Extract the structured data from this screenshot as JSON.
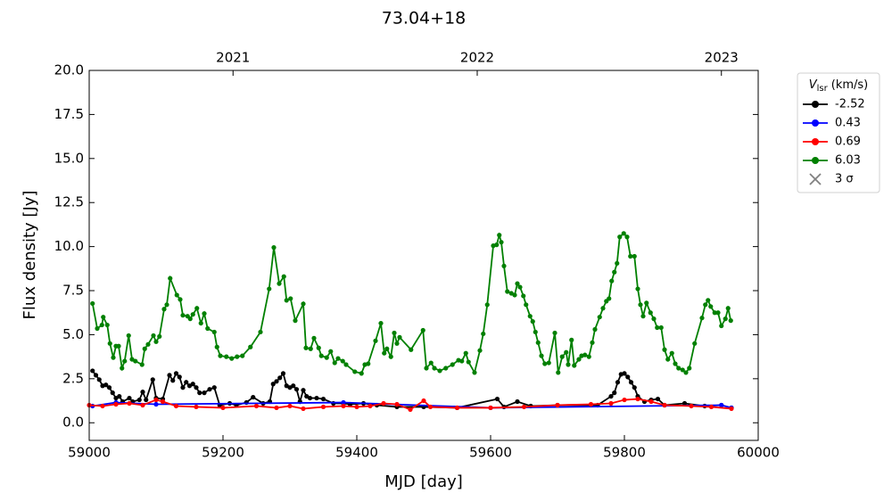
{
  "chart_data": {
    "type": "line",
    "title": "73.04+18",
    "xlabel": "MJD [day]",
    "ylabel": "Flux density [Jy]",
    "xlim": [
      59000,
      60000
    ],
    "xticks": [
      59000,
      59200,
      59400,
      59600,
      59800,
      60000
    ],
    "x2ticks": [
      {
        "value": 59215,
        "label": "2021"
      },
      {
        "value": 59580,
        "label": "2022"
      },
      {
        "value": 59945,
        "label": "2023"
      }
    ],
    "ylim": [
      -1,
      20
    ],
    "yticks": [
      {
        "value": 0,
        "label": "0.0"
      },
      2.5,
      {
        "value": 5,
        "label": "5.0"
      },
      7.5,
      {
        "value": 10,
        "label": "10.0"
      },
      12.5,
      {
        "value": 15,
        "label": "15.0"
      },
      17.5,
      {
        "value": 20,
        "label": "20.0"
      }
    ],
    "legend": {
      "title_symbol": "V",
      "title_subscript": "lsr",
      "title_unit": "(km/s)",
      "position": "outside-upper-right",
      "sigma_label": "3 σ",
      "sigma_color": "#808080"
    },
    "series": [
      {
        "name": "-2.52",
        "color": "#000000",
        "x": [
          59005,
          59010,
          59015,
          59020,
          59025,
          59030,
          59035,
          59040,
          59045,
          59050,
          59060,
          59065,
          59075,
          59080,
          59085,
          59095,
          59100,
          59110,
          59120,
          59125,
          59130,
          59135,
          59140,
          59145,
          59150,
          59155,
          59160,
          59165,
          59172,
          59180,
          59187,
          59195,
          59210,
          59220,
          59235,
          59245,
          59260,
          59270,
          59275,
          59280,
          59285,
          59290,
          59295,
          59300,
          59305,
          59310,
          59315,
          59320,
          59325,
          59330,
          59340,
          59350,
          59365,
          59380,
          59390,
          59410,
          59430,
          59460,
          59500,
          59550,
          59610,
          59620,
          59640,
          59660,
          59700,
          59760,
          59780,
          59785,
          59790,
          59795,
          59800,
          59805,
          59810,
          59815,
          59820,
          59830,
          59840,
          59850,
          59860,
          59890,
          59920,
          59945,
          59960
        ],
        "values": [
          2.95,
          2.7,
          2.45,
          2.1,
          2.15,
          2.0,
          1.7,
          1.4,
          1.5,
          1.2,
          1.4,
          1.2,
          1.3,
          1.75,
          1.3,
          2.45,
          1.4,
          1.35,
          2.7,
          2.4,
          2.8,
          2.6,
          2.0,
          2.3,
          2.1,
          2.2,
          2.0,
          1.7,
          1.7,
          1.9,
          2.0,
          1.0,
          1.1,
          1.0,
          1.15,
          1.45,
          1.1,
          1.2,
          2.2,
          2.35,
          2.55,
          2.8,
          2.1,
          2.0,
          2.1,
          1.9,
          1.2,
          1.85,
          1.5,
          1.4,
          1.4,
          1.35,
          1.1,
          1.1,
          1.05,
          1.1,
          1.0,
          0.9,
          0.9,
          0.85,
          1.35,
          0.9,
          1.2,
          0.95,
          1.0,
          1.0,
          1.5,
          1.7,
          2.3,
          2.75,
          2.8,
          2.6,
          2.3,
          2.0,
          1.5,
          1.2,
          1.3,
          1.35,
          1.0,
          1.1,
          0.95,
          1.0,
          0.85
        ]
      },
      {
        "name": "0.43",
        "color": "#0000ff",
        "x": [
          59005,
          59040,
          59100,
          59380,
          59600,
          59945,
          59960
        ],
        "values": [
          0.95,
          1.15,
          1.05,
          1.15,
          0.85,
          1.0,
          0.85
        ]
      },
      {
        "name": "0.69",
        "color": "#ff0000",
        "x": [
          59000,
          59020,
          59040,
          59060,
          59080,
          59100,
          59110,
          59130,
          59160,
          59200,
          59250,
          59280,
          59300,
          59320,
          59350,
          59380,
          59400,
          59420,
          59440,
          59460,
          59480,
          59500,
          59510,
          59550,
          59600,
          59650,
          59700,
          59750,
          59780,
          59800,
          59820,
          59840,
          59860,
          59900,
          59930,
          59960
        ],
        "values": [
          1.0,
          0.95,
          1.05,
          1.1,
          1.0,
          1.3,
          1.2,
          0.95,
          0.9,
          0.85,
          0.95,
          0.85,
          0.95,
          0.8,
          0.9,
          0.95,
          0.9,
          0.95,
          1.1,
          1.05,
          0.75,
          1.25,
          0.9,
          0.85,
          0.85,
          0.9,
          1.0,
          1.05,
          1.1,
          1.3,
          1.35,
          1.2,
          1.0,
          0.95,
          0.9,
          0.8
        ]
      },
      {
        "name": "6.03",
        "color": "#008000",
        "x": [
          59005,
          59012,
          59019,
          59021,
          59027,
          59031,
          59036,
          59040,
          59044,
          59049,
          59053,
          59059,
          59064,
          59069,
          59079,
          59083,
          59088,
          59096,
          59100,
          59105,
          59112,
          59116,
          59121,
          59131,
          59136,
          59140,
          59147,
          59151,
          59155,
          59161,
          59167,
          59172,
          59177,
          59187,
          59191,
          59196,
          59205,
          59213,
          59221,
          59229,
          59241,
          59256,
          59269,
          59276,
          59284,
          59291,
          59295,
          59301,
          59308,
          59320,
          59324,
          59331,
          59336,
          59343,
          59347,
          59355,
          59361,
          59367,
          59372,
          59379,
          59384,
          59397,
          59407,
          59412,
          59417,
          59428,
          59436,
          59441,
          59445,
          59451,
          59456,
          59460,
          59464,
          59481,
          59499,
          59504,
          59511,
          59516,
          59524,
          59533,
          59543,
          59552,
          59557,
          59563,
          59567,
          59576,
          59584,
          59589,
          59595,
          59604,
          59609,
          59613,
          59616,
          59620,
          59625,
          59631,
          59636,
          59640,
          59644,
          59649,
          59653,
          59659,
          59663,
          59667,
          59671,
          59676,
          59681,
          59687,
          59696,
          59701,
          59707,
          59713,
          59716,
          59721,
          59725,
          59732,
          59736,
          59741,
          59747,
          59752,
          59756,
          59763,
          59768,
          59773,
          59777,
          59781,
          59785,
          59789,
          59793,
          59799,
          59804,
          59809,
          59815,
          59820,
          59824,
          59828,
          59833,
          59839,
          59844,
          59849,
          59855,
          59860,
          59865,
          59871,
          59876,
          59881,
          59887,
          59892,
          59897,
          59905,
          59916,
          59921,
          59925,
          59929,
          59935,
          59940,
          59945,
          59951,
          59955,
          59959
        ],
        "values": [
          6.77,
          5.35,
          5.55,
          6.0,
          5.55,
          4.5,
          3.7,
          4.35,
          4.35,
          3.1,
          3.5,
          4.95,
          3.6,
          3.5,
          3.3,
          4.2,
          4.45,
          4.95,
          4.6,
          4.9,
          6.45,
          6.7,
          8.2,
          7.25,
          7.0,
          6.1,
          6.05,
          5.9,
          6.15,
          6.5,
          5.65,
          6.2,
          5.35,
          5.15,
          4.3,
          3.8,
          3.75,
          3.65,
          3.75,
          3.8,
          4.3,
          5.15,
          7.6,
          9.95,
          7.9,
          8.3,
          6.95,
          7.05,
          5.8,
          6.75,
          4.25,
          4.2,
          4.8,
          4.25,
          3.8,
          3.7,
          4.05,
          3.4,
          3.65,
          3.5,
          3.3,
          2.9,
          2.8,
          3.3,
          3.35,
          4.65,
          5.65,
          3.95,
          4.2,
          3.75,
          5.1,
          4.5,
          4.85,
          4.15,
          5.25,
          3.1,
          3.4,
          3.1,
          2.95,
          3.1,
          3.3,
          3.55,
          3.5,
          3.95,
          3.45,
          2.85,
          4.1,
          5.05,
          6.7,
          10.05,
          10.1,
          10.65,
          10.25,
          8.9,
          7.45,
          7.35,
          7.25,
          7.9,
          7.7,
          7.2,
          6.7,
          6.05,
          5.75,
          5.15,
          4.55,
          3.8,
          3.35,
          3.4,
          5.1,
          2.85,
          3.75,
          4.0,
          3.3,
          4.7,
          3.25,
          3.6,
          3.8,
          3.85,
          3.75,
          4.55,
          5.3,
          6.0,
          6.5,
          6.9,
          7.05,
          8.05,
          8.55,
          9.05,
          10.55,
          10.75,
          10.55,
          9.45,
          9.45,
          7.6,
          6.7,
          6.05,
          6.8,
          6.25,
          5.9,
          5.4,
          5.4,
          4.15,
          3.6,
          3.95,
          3.35,
          3.1,
          3.0,
          2.85,
          3.1,
          4.5,
          5.95,
          6.7,
          6.95,
          6.6,
          6.25,
          6.25,
          5.5,
          5.9,
          6.5,
          5.8
        ]
      }
    ]
  }
}
